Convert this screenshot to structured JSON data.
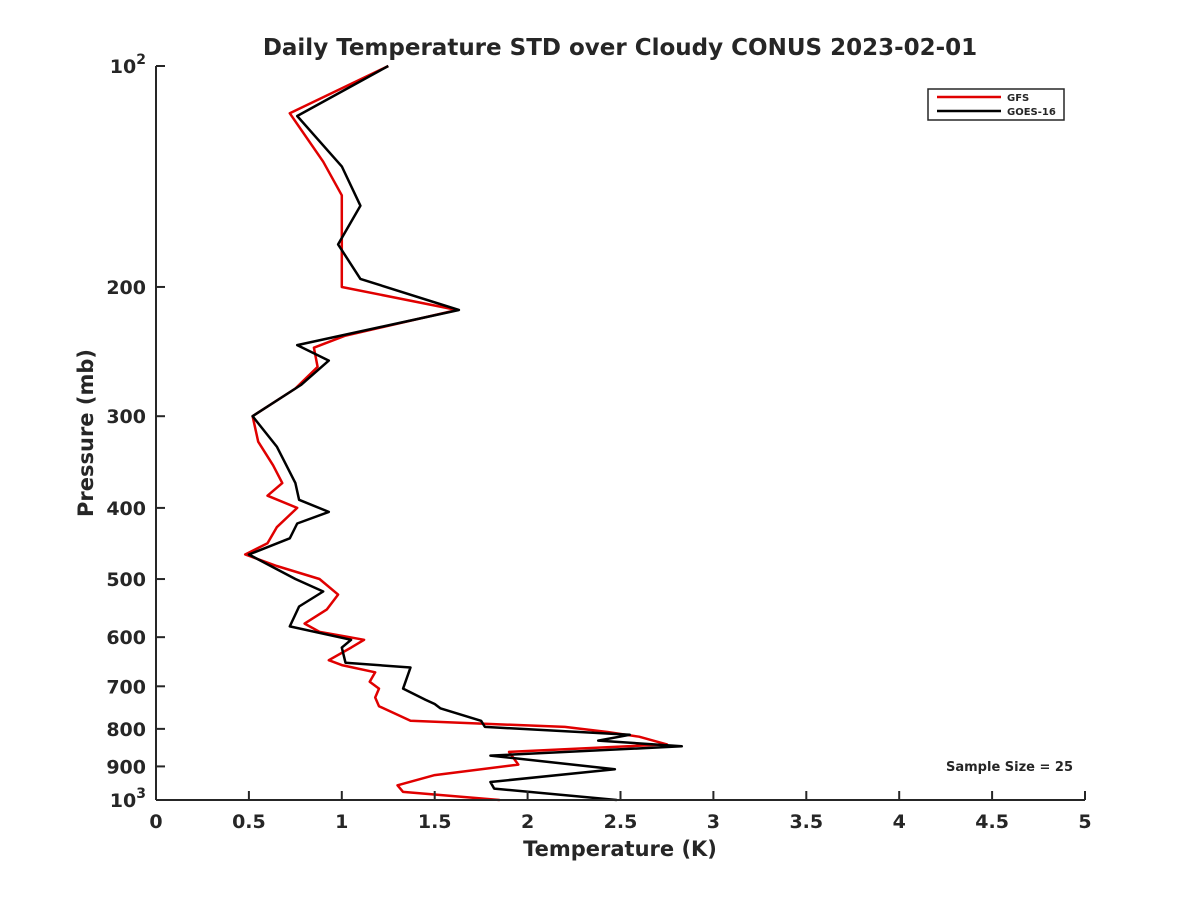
{
  "chart_data": {
    "type": "line",
    "title": "Daily Temperature STD over Cloudy CONUS 2023-02-01",
    "xlabel": "Temperature (K)",
    "ylabel": "Pressure (mb)",
    "xlim": [
      0,
      5
    ],
    "ylim": [
      100,
      1000
    ],
    "y_scale": "log",
    "y_reversed": true,
    "x_ticks": [
      {
        "value": 0,
        "label": "0"
      },
      {
        "value": 0.5,
        "label": "0.5"
      },
      {
        "value": 1,
        "label": "1"
      },
      {
        "value": 1.5,
        "label": "1.5"
      },
      {
        "value": 2,
        "label": "2"
      },
      {
        "value": 2.5,
        "label": "2.5"
      },
      {
        "value": 3,
        "label": "3"
      },
      {
        "value": 3.5,
        "label": "3.5"
      },
      {
        "value": 4,
        "label": "4"
      },
      {
        "value": 4.5,
        "label": "4.5"
      },
      {
        "value": 5,
        "label": "5"
      }
    ],
    "y_ticks": [
      {
        "value": 100,
        "label": "10",
        "sup": "2"
      },
      {
        "value": 200,
        "label": "200",
        "sup": ""
      },
      {
        "value": 300,
        "label": "300",
        "sup": ""
      },
      {
        "value": 400,
        "label": "400",
        "sup": ""
      },
      {
        "value": 500,
        "label": "500",
        "sup": ""
      },
      {
        "value": 600,
        "label": "600",
        "sup": ""
      },
      {
        "value": 700,
        "label": "700",
        "sup": ""
      },
      {
        "value": 800,
        "label": "800",
        "sup": ""
      },
      {
        "value": 900,
        "label": "900",
        "sup": ""
      },
      {
        "value": 1000,
        "label": "10",
        "sup": "3"
      }
    ],
    "grid": false,
    "legend_position": "top-right",
    "series": [
      {
        "name": "GFS",
        "color": "#e00000",
        "points": [
          [
            1.25,
            100
          ],
          [
            0.72,
            116
          ],
          [
            0.9,
            135
          ],
          [
            1.0,
            150
          ],
          [
            1.0,
            200
          ],
          [
            1.62,
            215
          ],
          [
            1.02,
            233
          ],
          [
            0.85,
            242
          ],
          [
            0.87,
            257
          ],
          [
            0.75,
            275
          ],
          [
            0.52,
            300
          ],
          [
            0.55,
            325
          ],
          [
            0.63,
            350
          ],
          [
            0.68,
            370
          ],
          [
            0.6,
            385
          ],
          [
            0.76,
            400
          ],
          [
            0.65,
            425
          ],
          [
            0.6,
            447
          ],
          [
            0.48,
            463
          ],
          [
            0.65,
            480
          ],
          [
            0.88,
            500
          ],
          [
            0.98,
            525
          ],
          [
            0.92,
            550
          ],
          [
            0.8,
            575
          ],
          [
            0.88,
            590
          ],
          [
            1.12,
            605
          ],
          [
            1.05,
            620
          ],
          [
            0.93,
            645
          ],
          [
            1.0,
            655
          ],
          [
            1.18,
            670
          ],
          [
            1.15,
            690
          ],
          [
            1.2,
            705
          ],
          [
            1.18,
            725
          ],
          [
            1.2,
            745
          ],
          [
            1.37,
            780
          ],
          [
            2.2,
            795
          ],
          [
            2.43,
            808
          ],
          [
            2.6,
            820
          ],
          [
            2.75,
            840
          ],
          [
            1.9,
            860
          ],
          [
            1.95,
            895
          ],
          [
            1.5,
            925
          ],
          [
            1.3,
            955
          ],
          [
            1.33,
            975
          ],
          [
            1.85,
            1000
          ]
        ]
      },
      {
        "name": "GOES-16",
        "color": "#000000",
        "points": [
          [
            1.25,
            100
          ],
          [
            0.76,
            117
          ],
          [
            1.0,
            137
          ],
          [
            1.1,
            155
          ],
          [
            0.98,
            175
          ],
          [
            1.1,
            195
          ],
          [
            1.63,
            215
          ],
          [
            0.76,
            240
          ],
          [
            0.93,
            252
          ],
          [
            0.78,
            272
          ],
          [
            0.52,
            300
          ],
          [
            0.65,
            330
          ],
          [
            0.75,
            370
          ],
          [
            0.77,
            390
          ],
          [
            0.93,
            405
          ],
          [
            0.76,
            420
          ],
          [
            0.72,
            440
          ],
          [
            0.5,
            463
          ],
          [
            0.75,
            500
          ],
          [
            0.9,
            520
          ],
          [
            0.77,
            545
          ],
          [
            0.72,
            580
          ],
          [
            1.05,
            605
          ],
          [
            1.0,
            620
          ],
          [
            1.02,
            650
          ],
          [
            1.37,
            660
          ],
          [
            1.33,
            705
          ],
          [
            1.45,
            730
          ],
          [
            1.5,
            740
          ],
          [
            1.53,
            750
          ],
          [
            1.75,
            780
          ],
          [
            1.77,
            795
          ],
          [
            2.55,
            815
          ],
          [
            2.38,
            830
          ],
          [
            2.83,
            845
          ],
          [
            1.8,
            870
          ],
          [
            2.47,
            908
          ],
          [
            1.8,
            945
          ],
          [
            1.82,
            965
          ],
          [
            2.48,
            1000
          ]
        ]
      }
    ],
    "annotation": "Sample Size = 25"
  }
}
